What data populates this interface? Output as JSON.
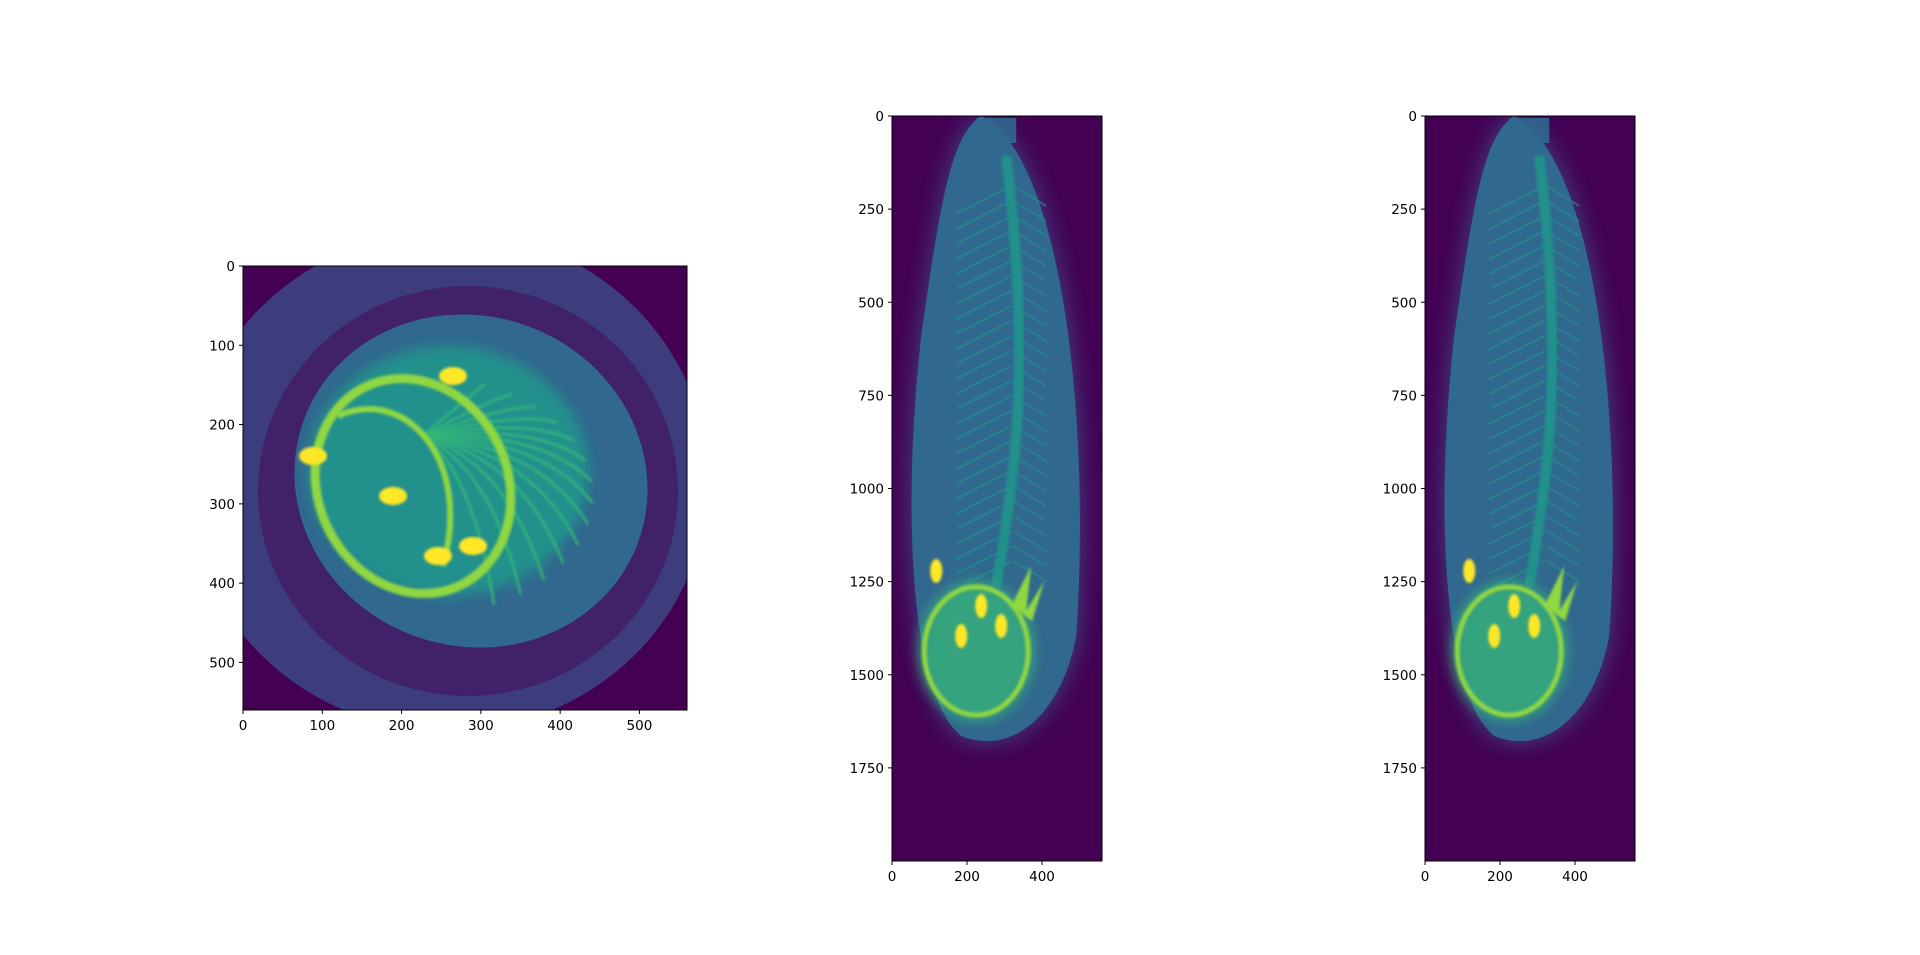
{
  "chart_data": [
    {
      "type": "heatmap",
      "view": "axial",
      "title": "",
      "xlabel": "",
      "ylabel": "",
      "xlim": [
        0,
        560
      ],
      "ylim": [
        560,
        0
      ],
      "x_ticks": [
        0,
        100,
        200,
        300,
        400,
        500
      ],
      "y_ticks": [
        0,
        100,
        200,
        300,
        400,
        500
      ],
      "colormap": "viridis",
      "grid": false
    },
    {
      "type": "heatmap",
      "view": "coronal",
      "title": "",
      "xlabel": "",
      "ylabel": "",
      "xlim": [
        0,
        560
      ],
      "ylim": [
        2000,
        0
      ],
      "x_ticks": [
        0,
        200,
        400
      ],
      "y_ticks": [
        0,
        250,
        500,
        750,
        1000,
        1250,
        1500,
        1750
      ],
      "colormap": "viridis",
      "grid": false
    },
    {
      "type": "heatmap",
      "view": "sagittal",
      "title": "",
      "xlabel": "",
      "ylabel": "",
      "xlim": [
        0,
        560
      ],
      "ylim": [
        2000,
        0
      ],
      "x_ticks": [
        0,
        200,
        400
      ],
      "y_ticks": [
        0,
        250,
        500,
        750,
        1000,
        1250,
        1500,
        1750
      ],
      "colormap": "viridis",
      "grid": false
    }
  ],
  "colors": {
    "background": "#440154",
    "soft_tissue": "#3b528b",
    "tissue": "#31688e",
    "mid": "#21918c",
    "bone": "#35b779",
    "bright": "#90d743",
    "peak": "#fde725"
  }
}
